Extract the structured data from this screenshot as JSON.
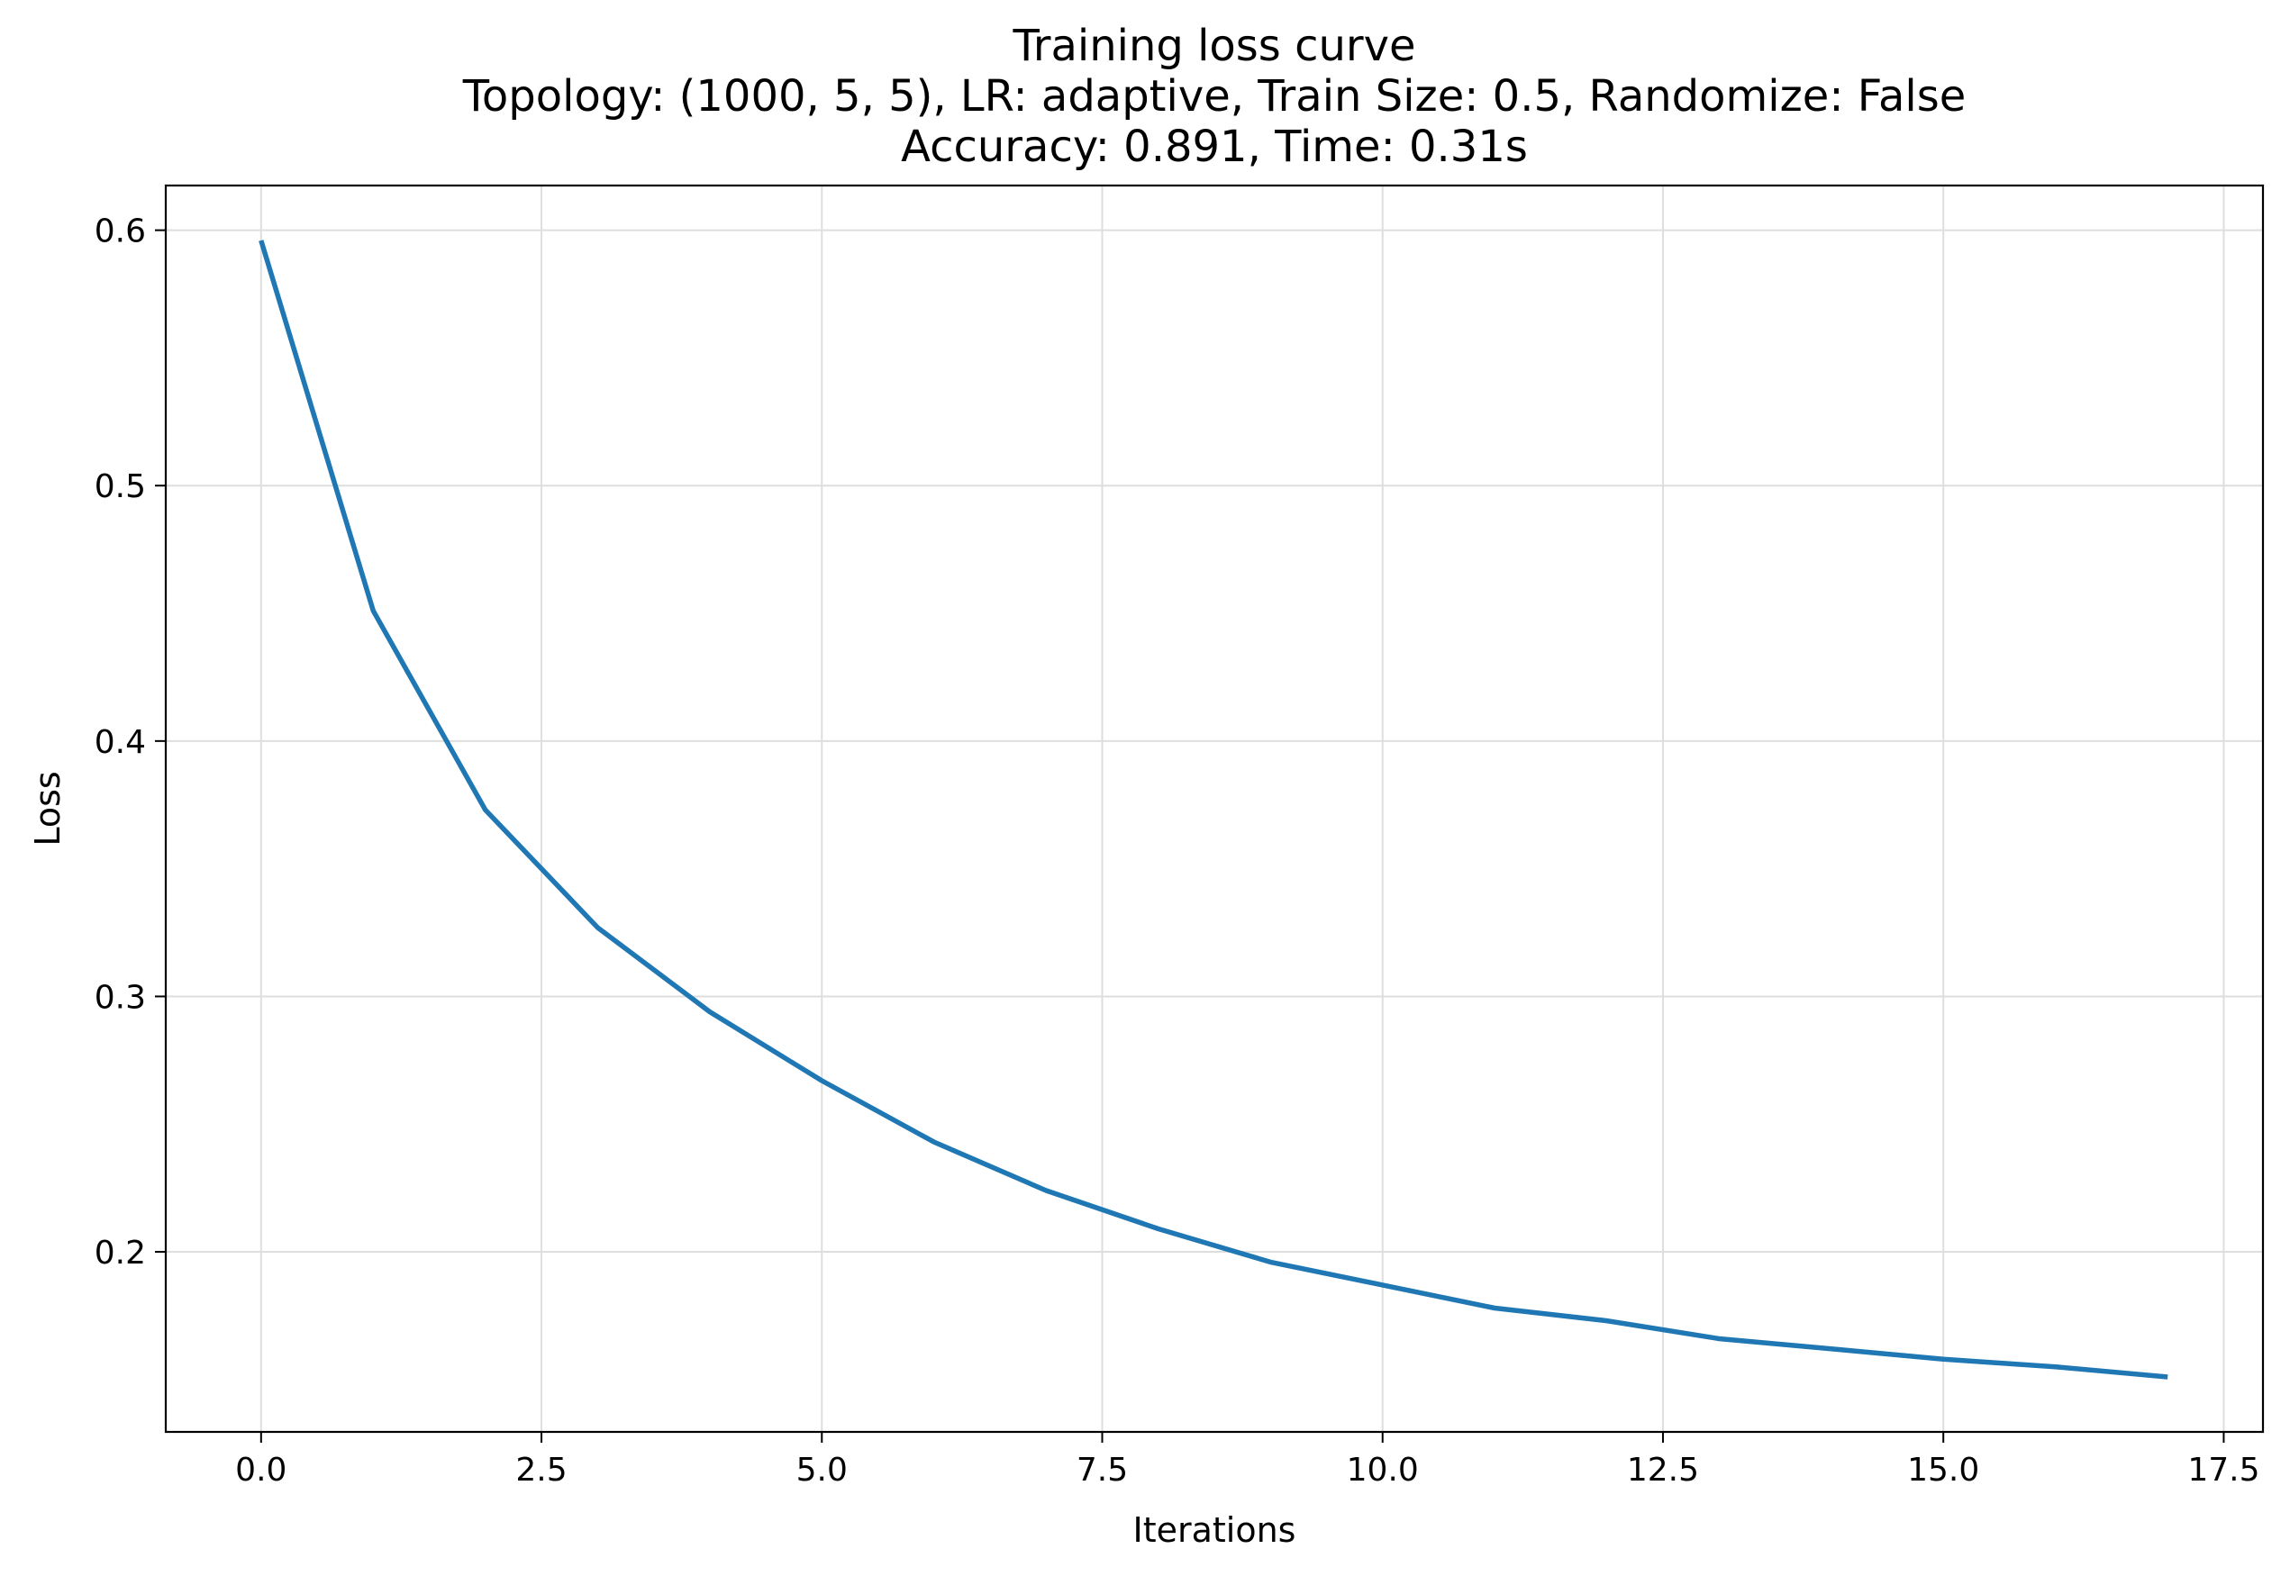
{
  "chart_data": {
    "type": "line",
    "title": "Training loss curve",
    "subtitle_lines": [
      "Topology: (1000, 5, 5), LR: adaptive, Train Size: 0.5, Randomize: False",
      "Accuracy: 0.891, Time: 0.31s"
    ],
    "xlabel": "Iterations",
    "ylabel": "Loss",
    "xlim": [
      -0.85,
      17.85
    ],
    "ylim": [
      0.1295,
      0.6175
    ],
    "xticks": [
      0.0,
      2.5,
      5.0,
      7.5,
      10.0,
      12.5,
      15.0,
      17.5
    ],
    "xtick_labels": [
      "0.0",
      "2.5",
      "5.0",
      "7.5",
      "10.0",
      "12.5",
      "15.0",
      "17.5"
    ],
    "yticks": [
      0.2,
      0.3,
      0.4,
      0.5,
      0.6
    ],
    "ytick_labels": [
      "0.2",
      "0.3",
      "0.4",
      "0.5",
      "0.6"
    ],
    "grid": true,
    "legend": false,
    "series": [
      {
        "color": "#1f77b4",
        "x": [
          0,
          1,
          2,
          3,
          4,
          5,
          6,
          7,
          8,
          9,
          10,
          11,
          12,
          13,
          14,
          15,
          16,
          17
        ],
        "y": [
          0.596,
          0.451,
          0.373,
          0.327,
          0.294,
          0.267,
          0.243,
          0.224,
          0.209,
          0.196,
          0.187,
          0.178,
          0.173,
          0.166,
          0.162,
          0.158,
          0.155,
          0.151
        ]
      }
    ]
  }
}
